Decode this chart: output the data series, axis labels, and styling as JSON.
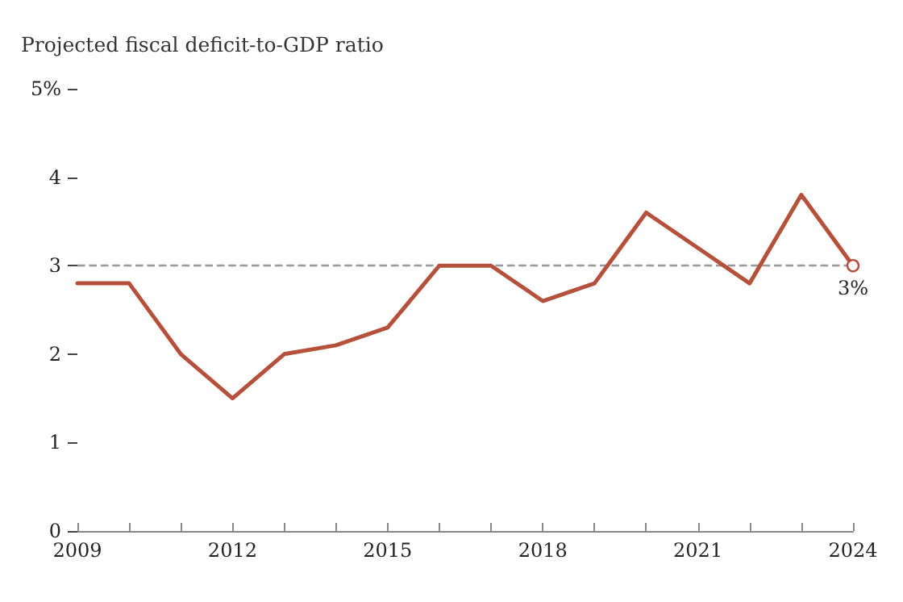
{
  "chart_data": {
    "type": "line",
    "title": "Projected fiscal deficit-to-GDP ratio",
    "x": [
      2009,
      2010,
      2011,
      2012,
      2013,
      2014,
      2015,
      2016,
      2017,
      2018,
      2019,
      2020,
      2021,
      2022,
      2023,
      2024
    ],
    "series": [
      {
        "color": "#b5503a",
        "values": [
          2.8,
          2.8,
          2.0,
          1.5,
          2.0,
          2.1,
          2.3,
          3.0,
          3.0,
          2.6,
          2.8,
          3.6,
          3.2,
          2.8,
          3.8,
          3.0
        ]
      }
    ],
    "xlim": [
      2009,
      2024
    ],
    "xticks": [
      2009,
      {
        "value": 2010,
        "label": null
      },
      {
        "value": 2011,
        "label": null
      },
      2012,
      {
        "value": 2013,
        "label": null
      },
      {
        "value": 2014,
        "label": null
      },
      2015,
      {
        "value": 2016,
        "label": null
      },
      {
        "value": 2017,
        "label": null
      },
      2018,
      {
        "value": 2019,
        "label": null
      },
      {
        "value": 2020,
        "label": null
      },
      2021,
      {
        "value": 2022,
        "label": null
      },
      {
        "value": 2023,
        "label": null
      },
      2024
    ],
    "ylim": [
      0,
      5
    ],
    "yticks": [
      0,
      1,
      2,
      3,
      4,
      {
        "value": 5,
        "label": "5%"
      }
    ],
    "ref_lines": [
      {
        "axis": "y",
        "value": 3,
        "color": "#999999",
        "line_style": "dashed"
      }
    ],
    "annotations": [
      {
        "text": "3%",
        "x": 2024,
        "y": 3
      }
    ],
    "grid": false,
    "marker": "none",
    "line_style": "solid"
  }
}
